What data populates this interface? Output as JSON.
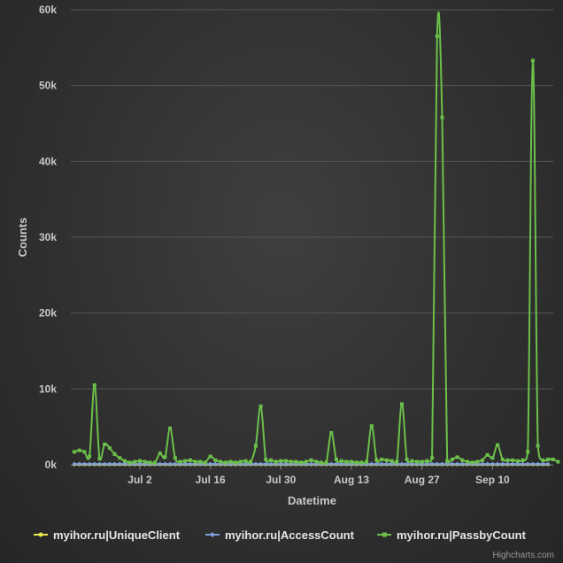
{
  "chart_data": {
    "type": "line",
    "title": "",
    "xlabel": "Datetime",
    "ylabel": "Counts",
    "ylim": [
      0,
      60000
    ],
    "yticks": [
      0,
      10000,
      20000,
      30000,
      40000,
      50000,
      60000
    ],
    "yticks_labels": [
      "0k",
      "10k",
      "20k",
      "30k",
      "40k",
      "50k",
      "60k"
    ],
    "xticks": [
      "Jul 2",
      "Jul 16",
      "Jul 30",
      "Aug 13",
      "Aug 27",
      "Sep 10"
    ],
    "x_start": "Jun 19",
    "grid": true,
    "legend_position": "bottom",
    "series": [
      {
        "name": "myihor.ru|UniqueClient",
        "color": "#e8e84a",
        "values": [
          50,
          50,
          50,
          50,
          50,
          50,
          50,
          50,
          50,
          50,
          50,
          50,
          50,
          50,
          50,
          50,
          50,
          50,
          50,
          50,
          50,
          50,
          50,
          50,
          50,
          50,
          50,
          50,
          50,
          50,
          50,
          50,
          50,
          50,
          50,
          50,
          50,
          50,
          50,
          50,
          50,
          50,
          50,
          50,
          50,
          50,
          50,
          50,
          50,
          50,
          50,
          50,
          50,
          50,
          50,
          50,
          50,
          50,
          50,
          50,
          50,
          50,
          50,
          50,
          50,
          50,
          50,
          50,
          50,
          50,
          50,
          50,
          50,
          50,
          50,
          50,
          50,
          50,
          50,
          50,
          50,
          50,
          50,
          50,
          50,
          50,
          50,
          50,
          50,
          50,
          50,
          50,
          50,
          50,
          50
        ]
      },
      {
        "name": "myihor.ru|AccessCount",
        "color": "#7f9fd8",
        "values": [
          100,
          100,
          100,
          100,
          100,
          100,
          100,
          100,
          100,
          100,
          100,
          100,
          100,
          100,
          100,
          100,
          100,
          100,
          100,
          100,
          100,
          100,
          100,
          100,
          100,
          100,
          100,
          100,
          100,
          100,
          100,
          100,
          100,
          100,
          100,
          100,
          100,
          100,
          100,
          100,
          100,
          100,
          100,
          100,
          100,
          100,
          100,
          100,
          100,
          100,
          100,
          100,
          100,
          100,
          100,
          100,
          100,
          100,
          100,
          100,
          100,
          100,
          100,
          100,
          100,
          100,
          100,
          100,
          100,
          100,
          100,
          100,
          100,
          100,
          100,
          100,
          100,
          100,
          100,
          100,
          100,
          100,
          100,
          100,
          100,
          100,
          100,
          100,
          100,
          100,
          100,
          100,
          100,
          100,
          100
        ]
      },
      {
        "name": "myihor.ru|PassbyCount",
        "color": "#6cc04a",
        "values": [
          1700,
          1900,
          1700,
          1100,
          10500,
          800,
          2700,
          2200,
          1400,
          900,
          500,
          300,
          400,
          500,
          400,
          300,
          300,
          1500,
          1000,
          4800,
          900,
          400,
          500,
          600,
          400,
          400,
          300,
          1100,
          600,
          400,
          300,
          400,
          300,
          400,
          500,
          400,
          2500,
          7700,
          700,
          600,
          400,
          500,
          500,
          400,
          400,
          300,
          400,
          600,
          400,
          300,
          300,
          4200,
          700,
          500,
          400,
          400,
          300,
          300,
          400,
          5100,
          600,
          700,
          600,
          500,
          400,
          8000,
          700,
          500,
          400,
          400,
          500,
          900,
          56500,
          45800,
          500,
          700,
          1000,
          600,
          400,
          300,
          400,
          600,
          1300,
          900,
          2600,
          700,
          600,
          600,
          500,
          600,
          1700,
          53300,
          2500,
          600,
          700,
          700,
          400
        ]
      }
    ]
  },
  "credits": "Highcharts.com"
}
